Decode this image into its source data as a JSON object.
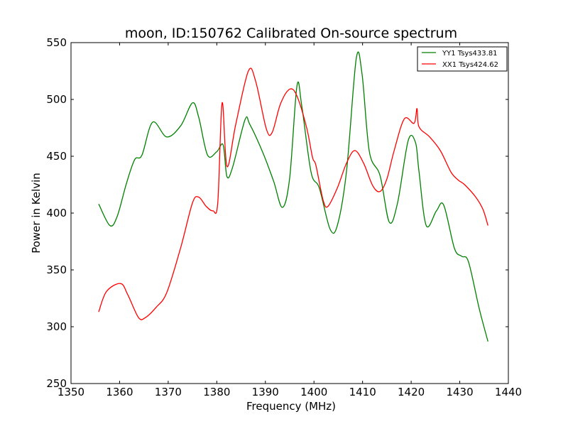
{
  "chart_data": {
    "type": "line",
    "title": "moon, ID:150762 Calibrated On-source spectrum",
    "xlabel": "Frequency (MHz)",
    "ylabel": "Power in Kelvin",
    "xlim": [
      1350,
      1440
    ],
    "ylim": [
      250,
      550
    ],
    "xticks": [
      "1350",
      "1360",
      "1370",
      "1380",
      "1390",
      "1400",
      "1410",
      "1420",
      "1430",
      "1440"
    ],
    "yticks": [
      "250",
      "300",
      "350",
      "400",
      "450",
      "500",
      "550"
    ],
    "grid": false,
    "legend_position": "top-right",
    "series": [
      {
        "name": "YY1 Tsys433.81",
        "color": "#008000",
        "x": [
          1355.7,
          1358.0,
          1359.5,
          1361.4,
          1363.1,
          1364.6,
          1366.8,
          1369.7,
          1372.6,
          1375.0,
          1376.3,
          1378.1,
          1380.0,
          1381.3,
          1382.1,
          1383.3,
          1385.8,
          1386.8,
          1389.5,
          1391.7,
          1393.5,
          1395.0,
          1396.5,
          1397.5,
          1399.4,
          1401.1,
          1403.3,
          1404.8,
          1406.7,
          1408.7,
          1409.9,
          1411.4,
          1413.6,
          1415.5,
          1417.2,
          1419.4,
          1420.9,
          1421.6,
          1423.1,
          1425.2,
          1426.7,
          1428.9,
          1430.4,
          1431.8,
          1434.0,
          1435.8
        ],
        "y": [
          408,
          389,
          397,
          426,
          447,
          451,
          480,
          467,
          477,
          497,
          484,
          451,
          454,
          460,
          432,
          441,
          482,
          478,
          453,
          428,
          405,
          431,
          512,
          494,
          436,
          422,
          386,
          389,
          437,
          536,
          522,
          454,
          433,
          392,
          409,
          464,
          462,
          437,
          389,
          402,
          407,
          369,
          362,
          357,
          316,
          287
        ]
      },
      {
        "name": "XX1 Tsys424.62",
        "color": "#ff0000",
        "x": [
          1355.7,
          1357.3,
          1360.2,
          1361.7,
          1363.9,
          1365.3,
          1367.5,
          1369.7,
          1372.6,
          1375.0,
          1376.3,
          1377.8,
          1379.2,
          1380.2,
          1381.1,
          1382.1,
          1383.9,
          1386.5,
          1388.0,
          1390.2,
          1391.4,
          1393.1,
          1395.0,
          1396.5,
          1398.5,
          1399.7,
          1400.4,
          1401.9,
          1402.9,
          1404.8,
          1406.7,
          1408.4,
          1410.2,
          1412.1,
          1413.6,
          1415.0,
          1416.5,
          1418.6,
          1420.6,
          1421.2,
          1421.6,
          1423.8,
          1426.0,
          1428.2,
          1429.7,
          1431.0,
          1433.3,
          1434.8,
          1435.8
        ],
        "y": [
          313,
          331,
          338,
          328,
          308,
          308,
          317,
          330,
          370,
          409,
          414,
          406,
          402,
          409,
          497,
          441,
          478,
          525,
          516,
          474,
          471,
          496,
          509,
          503,
          475,
          449,
          442,
          411,
          406,
          422,
          444,
          455,
          444,
          424,
          419,
          430,
          455,
          483,
          479,
          492,
          476,
          467,
          455,
          436,
          429,
          425,
          414,
          403,
          389
        ]
      }
    ]
  }
}
